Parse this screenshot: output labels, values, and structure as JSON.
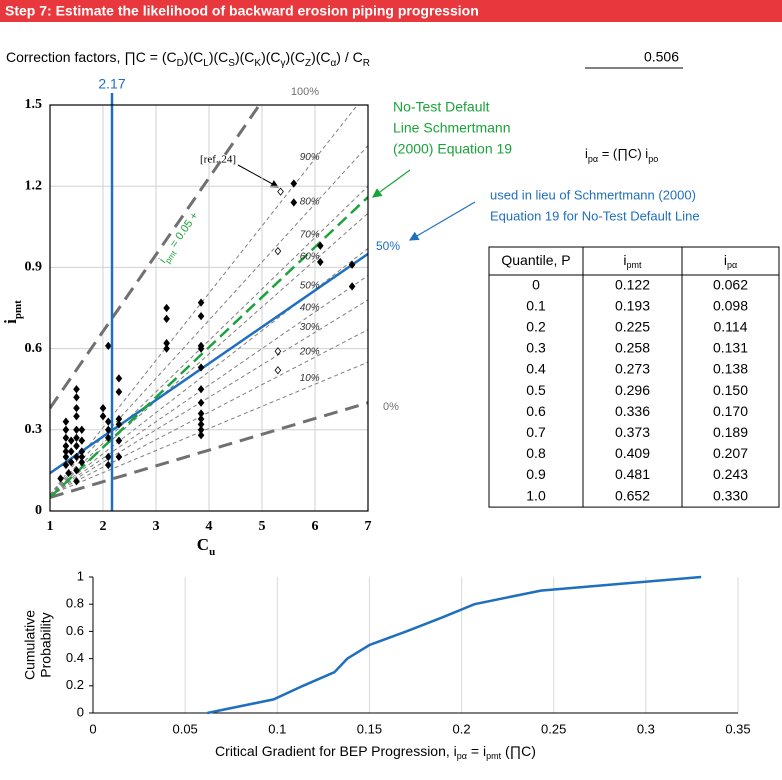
{
  "header": {
    "title": "Step 7: Estimate the likelihood of backward erosion piping progression"
  },
  "correction": {
    "formula": [
      "Correction factors, ∏C = (C",
      "D",
      ")(C",
      "L",
      ")(C",
      "S",
      ")(C",
      "K",
      ")(C",
      "γ",
      ")(C",
      "Z",
      ")(C",
      "α",
      ") / C",
      "R"
    ],
    "value": "0.506"
  },
  "notes": {
    "green": [
      "No-Test Default",
      "Line Schmertmann",
      "(2000) Equation 19"
    ],
    "blue": [
      "used in lieu of Schmertmann (2000)",
      "Equation 19 for No-Test Default Line"
    ],
    "equation": [
      "i",
      "pα",
      " = (∏C) i",
      "po"
    ]
  },
  "table": {
    "header": [
      [
        "Quantile, P"
      ],
      [
        "i",
        "pmt"
      ],
      [
        "i",
        "pα"
      ]
    ],
    "rows": [
      [
        "0",
        "0.122",
        "0.062"
      ],
      [
        "0.1",
        "0.193",
        "0.098"
      ],
      [
        "0.2",
        "0.225",
        "0.114"
      ],
      [
        "0.3",
        "0.258",
        "0.131"
      ],
      [
        "0.4",
        "0.273",
        "0.138"
      ],
      [
        "0.5",
        "0.296",
        "0.150"
      ],
      [
        "0.6",
        "0.336",
        "0.170"
      ],
      [
        "0.7",
        "0.373",
        "0.189"
      ],
      [
        "0.8",
        "0.409",
        "0.207"
      ],
      [
        "0.9",
        "0.481",
        "0.243"
      ],
      [
        "1.0",
        "0.652",
        "0.330"
      ]
    ]
  },
  "chart_data": [
    {
      "type": "scatter",
      "x_label": [
        "C",
        "u"
      ],
      "y_label": [
        "i",
        "pmt"
      ],
      "xlim": [
        1,
        7
      ],
      "xticks": [
        1,
        2,
        3,
        4,
        5,
        6,
        7
      ],
      "ylim": [
        0,
        1.5
      ],
      "yticks": [
        0,
        0.3,
        0.6,
        0.9,
        1.2,
        1.5
      ],
      "grid": true,
      "vline": 2.17,
      "vline_color": "#1f6fbf",
      "ref_label": "[ref. 24]",
      "fit_label": [
        "i",
        "pmt",
        " = 0.05 +"
      ],
      "series": [
        {
          "name": "filled",
          "color": "#000000",
          "fill": true,
          "x": [
            1.3,
            1.3,
            1.3,
            1.3,
            1.3,
            1.3,
            1.3,
            1.35,
            1.2,
            1.4,
            1.4,
            1.4,
            1.5,
            1.5,
            1.5,
            1.5,
            1.5,
            1.5,
            1.5,
            1.5,
            1.5,
            1.5,
            1.6,
            1.6,
            1.6,
            1.6,
            1.6,
            2.0,
            2.0,
            2.1,
            2.1,
            2.1,
            2.1,
            2.1,
            2.1,
            2.3,
            2.3,
            2.3,
            2.3,
            2.3,
            2.3,
            3.2,
            3.2,
            3.2,
            3.2,
            3.85,
            3.85,
            3.85,
            3.85,
            3.85,
            3.85,
            3.85,
            3.85,
            3.85,
            3.85,
            3.85,
            3.85,
            5.6,
            5.6,
            6.1,
            6.1,
            6.7,
            6.7
          ],
          "values": [
            0.33,
            0.3,
            0.27,
            0.24,
            0.22,
            0.2,
            0.17,
            0.14,
            0.12,
            0.26,
            0.22,
            0.18,
            0.45,
            0.42,
            0.38,
            0.35,
            0.3,
            0.27,
            0.24,
            0.2,
            0.15,
            0.11,
            0.3,
            0.26,
            0.22,
            0.18,
            0.2,
            0.38,
            0.35,
            0.33,
            0.3,
            0.27,
            0.2,
            0.17,
            0.61,
            0.49,
            0.44,
            0.34,
            0.32,
            0.26,
            0.2,
            0.75,
            0.71,
            0.62,
            0.6,
            0.77,
            0.72,
            0.61,
            0.6,
            0.53,
            0.45,
            0.4,
            0.36,
            0.34,
            0.32,
            0.3,
            0.28,
            1.21,
            1.14,
            0.98,
            0.92,
            0.91,
            0.83
          ]
        },
        {
          "name": "hollow",
          "color": "#000000",
          "fill": false,
          "x": [
            5.35,
            5.3,
            5.3,
            5.3
          ],
          "values": [
            1.18,
            0.96,
            0.59,
            0.52
          ]
        }
      ],
      "lines": [
        {
          "label": "0%",
          "color": "#707070",
          "width": 3,
          "dash": "14 8",
          "x": [
            1,
            7
          ],
          "values": [
            0.05,
            0.4
          ]
        },
        {
          "label": "100%",
          "color": "#707070",
          "width": 3,
          "dash": "14 8",
          "x": [
            1,
            4.95
          ],
          "values": [
            0.38,
            1.5
          ]
        },
        {
          "label": "10%",
          "color": "#808080",
          "width": 1,
          "dash": "4 3",
          "x": [
            1,
            7
          ],
          "values": [
            0.06,
            0.55
          ]
        },
        {
          "label": "20%",
          "color": "#808080",
          "width": 1,
          "dash": "4 3",
          "x": [
            1,
            7
          ],
          "values": [
            0.06,
            0.67
          ]
        },
        {
          "label": "30%",
          "color": "#808080",
          "width": 1,
          "dash": "4 3",
          "x": [
            1,
            7
          ],
          "values": [
            0.06,
            0.78
          ]
        },
        {
          "label": "40%",
          "color": "#808080",
          "width": 1,
          "dash": "4 3",
          "x": [
            1,
            7
          ],
          "values": [
            0.06,
            0.87
          ]
        },
        {
          "label": "50%",
          "color": "#808080",
          "width": 1,
          "dash": "4 3",
          "x": [
            1,
            7
          ],
          "values": [
            0.06,
            0.97
          ]
        },
        {
          "label": "60%",
          "color": "#808080",
          "width": 1,
          "dash": "4 3",
          "x": [
            1,
            7
          ],
          "values": [
            0.06,
            1.1
          ]
        },
        {
          "label": "70%",
          "color": "#808080",
          "width": 1,
          "dash": "4 3",
          "x": [
            1,
            7
          ],
          "values": [
            0.06,
            1.2
          ]
        },
        {
          "label": "80%",
          "color": "#808080",
          "width": 1,
          "dash": "4 3",
          "x": [
            1,
            7
          ],
          "values": [
            0.06,
            1.35
          ]
        },
        {
          "label": "90%",
          "color": "#808080",
          "width": 1,
          "dash": "4 3",
          "x": [
            1,
            6.8
          ],
          "values": [
            0.06,
            1.5
          ]
        },
        {
          "label": "50%",
          "color": "#1f6fbf",
          "width": 2.5,
          "dash": "none",
          "x": [
            1,
            7
          ],
          "values": [
            0.14,
            0.95
          ]
        },
        {
          "color": "#1aa33a",
          "width": 2.5,
          "dash": "12 6",
          "x": [
            1,
            7
          ],
          "values": [
            0.05,
            1.16
          ]
        }
      ]
    },
    {
      "type": "line",
      "x_label": [
        "Critical Gradient for BEP Progression, i",
        "pα",
        " = i",
        "pmt",
        " (∏C)"
      ],
      "y_label": [
        "Cumulative",
        "Probability"
      ],
      "xlim": [
        0,
        0.35
      ],
      "xticks": [
        0,
        0.05,
        0.1,
        0.15,
        0.2,
        0.25,
        0.3,
        0.35
      ],
      "ylim": [
        0,
        1
      ],
      "yticks": [
        0,
        0.2,
        0.4,
        0.6,
        0.8,
        1
      ],
      "grid": "x",
      "color": "#1f6fbf",
      "x": [
        0.062,
        0.098,
        0.114,
        0.131,
        0.138,
        0.15,
        0.17,
        0.189,
        0.207,
        0.243,
        0.33
      ],
      "values": [
        0,
        0.1,
        0.2,
        0.3,
        0.4,
        0.5,
        0.6,
        0.7,
        0.8,
        0.9,
        1.0
      ]
    }
  ]
}
